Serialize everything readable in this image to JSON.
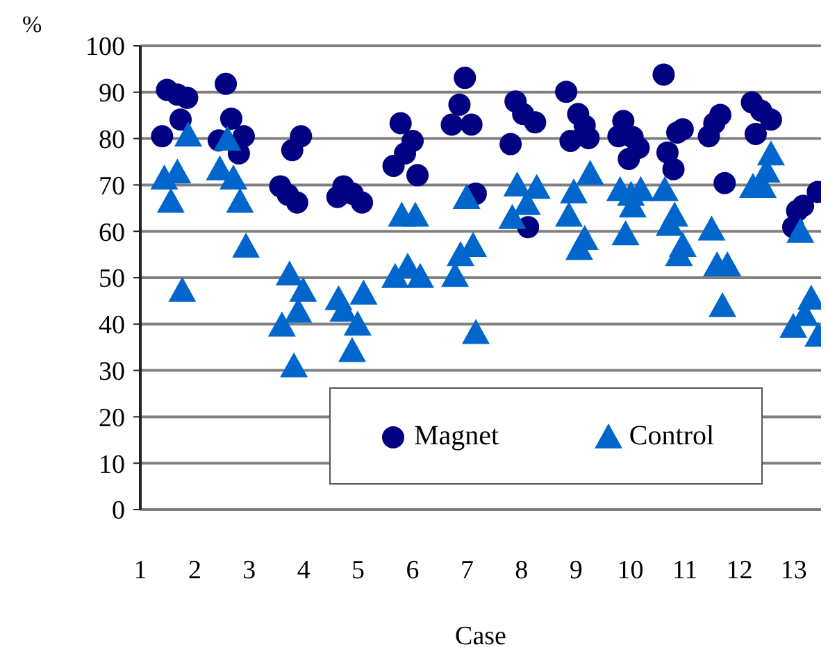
{
  "chart_data": {
    "type": "scatter",
    "xlabel": "Case",
    "ylabel": "%",
    "xlim": [
      1,
      13.5
    ],
    "xticks": [
      1,
      2,
      3,
      4,
      5,
      6,
      7,
      8,
      9,
      10,
      11,
      12,
      13
    ],
    "ylim": [
      0,
      100
    ],
    "yticks": [
      0,
      10,
      20,
      30,
      40,
      50,
      60,
      70,
      80,
      90,
      100
    ],
    "grid": "y",
    "legend": "bottom right",
    "series": [
      {
        "name": "Magnet",
        "color": "#000080",
        "marker": "circle",
        "x": [
          1.4,
          1.49,
          1.68,
          1.86,
          1.74,
          2.57,
          2.67,
          2.9,
          2.81,
          2.44,
          3.95,
          3.79,
          3.57,
          3.71,
          3.88,
          4.73,
          4.62,
          4.9,
          5.07,
          5.78,
          6.0,
          5.86,
          5.65,
          6.09,
          6.96,
          6.86,
          6.72,
          7.08,
          7.16,
          7.89,
          8.03,
          8.25,
          7.8,
          8.12,
          8.82,
          9.04,
          9.16,
          8.9,
          9.23,
          10.61,
          9.87,
          9.78,
          10.04,
          10.15,
          9.97,
          10.68,
          10.79,
          10.86,
          10.96,
          11.65,
          11.54,
          11.44,
          11.73,
          12.23,
          12.4,
          12.58,
          12.3,
          12.99,
          13.06,
          13.17,
          13.44
        ],
        "values": [
          80.5,
          90.5,
          89.5,
          88.8,
          84.1,
          91.8,
          84.3,
          80.5,
          76.8,
          79.6,
          80.5,
          77.5,
          69.7,
          67.9,
          66.2,
          69.7,
          67.4,
          68.1,
          66.2,
          83.3,
          79.5,
          76.8,
          74.1,
          72.1,
          93.1,
          87.3,
          83,
          83,
          68.1,
          88,
          85.3,
          83.5,
          78.8,
          60.9,
          90.1,
          85.3,
          82.8,
          79.5,
          80.1,
          93.8,
          83.8,
          80.5,
          80.3,
          78,
          75.6,
          77,
          73.4,
          81.3,
          82,
          85.1,
          83.3,
          80.5,
          70.4,
          87.8,
          86,
          84.1,
          81,
          60.9,
          64.4,
          65.5,
          68.5
        ]
      },
      {
        "name": "Control",
        "color": "#0066cc",
        "marker": "triangle",
        "x": [
          1.88,
          2.6,
          1.44,
          1.68,
          1.56,
          1.77,
          2.46,
          2.71,
          2.83,
          2.94,
          3.74,
          3.99,
          3.9,
          3.6,
          3.82,
          4.64,
          5.1,
          4.73,
          4.99,
          4.89,
          5.8,
          6.05,
          5.68,
          5.91,
          6.14,
          6.99,
          6.88,
          7.11,
          6.78,
          7.16,
          7.92,
          8.28,
          8.1,
          7.83,
          8.96,
          9.26,
          8.87,
          9.16,
          9.06,
          9.81,
          10.19,
          10.01,
          10.04,
          9.91,
          10.63,
          10.81,
          10.72,
          10.96,
          10.89,
          11.49,
          11.59,
          11.78,
          11.69,
          12.25,
          12.43,
          12.5,
          12.58,
          13.12,
          12.99,
          13.2,
          13.32,
          13.45
        ],
        "values": [
          80.7,
          79.8,
          71.4,
          72.7,
          66.4,
          47.2,
          73.4,
          71.4,
          66.4,
          56.7,
          50.7,
          47.2,
          42.7,
          39.7,
          30.9,
          45.4,
          46.6,
          42.9,
          39.9,
          34.2,
          63.4,
          63.4,
          50.2,
          52.4,
          50.2,
          67.2,
          54.9,
          56.9,
          50.4,
          38.1,
          69.9,
          69.4,
          65.9,
          62.9,
          68.4,
          72.4,
          63.4,
          58.4,
          56.2,
          68.9,
          68.9,
          67.9,
          65.4,
          59.4,
          68.9,
          63.4,
          61.4,
          56.9,
          54.9,
          60.4,
          52.7,
          52.7,
          43.9,
          69.6,
          69.6,
          72.9,
          76.6,
          59.9,
          39.4,
          42,
          45.5,
          37.5
        ]
      }
    ]
  }
}
